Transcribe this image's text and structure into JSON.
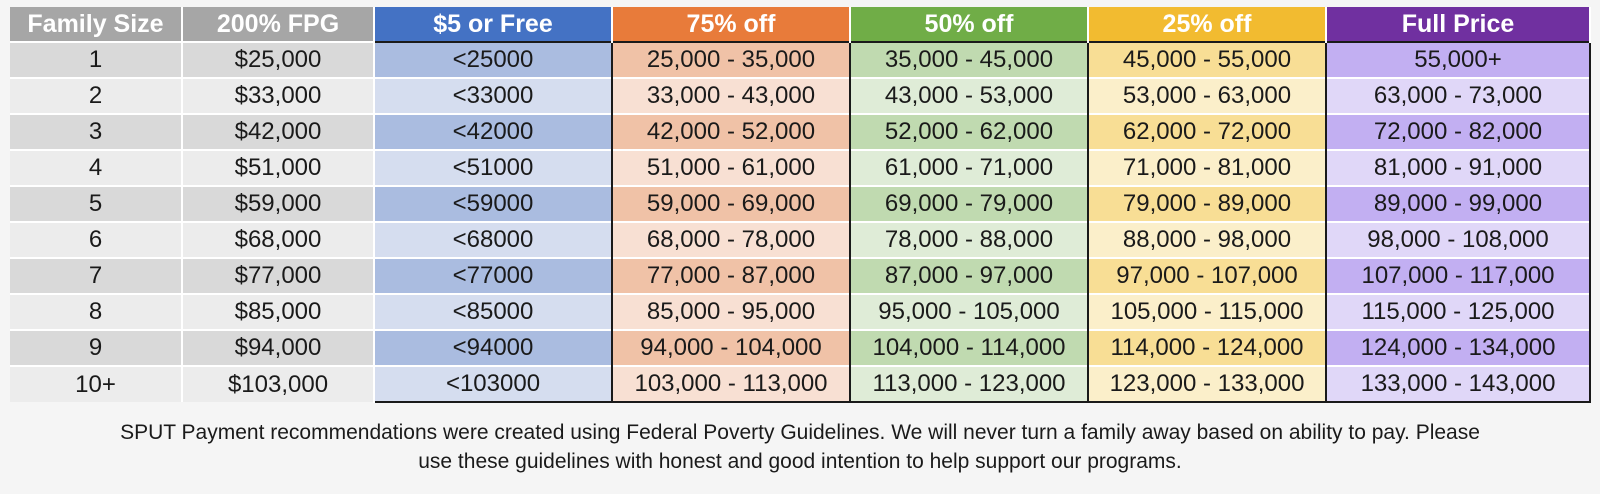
{
  "table": {
    "headers": [
      "Family Size",
      "200% FPG",
      "$5 or Free",
      "75% off",
      "50% off",
      "25% off",
      "Full Price"
    ],
    "rows": [
      [
        "1",
        "$25,000",
        "<25000",
        "25,000 - 35,000",
        "35,000 - 45,000",
        "45,000 - 55,000",
        "55,000+"
      ],
      [
        "2",
        "$33,000",
        "<33000",
        "33,000 - 43,000",
        "43,000 - 53,000",
        "53,000 - 63,000",
        "63,000 - 73,000"
      ],
      [
        "3",
        "$42,000",
        "<42000",
        "42,000 - 52,000",
        "52,000 - 62,000",
        "62,000 - 72,000",
        "72,000 - 82,000"
      ],
      [
        "4",
        "$51,000",
        "<51000",
        "51,000 - 61,000",
        "61,000 - 71,000",
        "71,000 - 81,000",
        "81,000 - 91,000"
      ],
      [
        "5",
        "$59,000",
        "<59000",
        "59,000 - 69,000",
        "69,000 - 79,000",
        "79,000 - 89,000",
        "89,000 - 99,000"
      ],
      [
        "6",
        "$68,000",
        "<68000",
        "68,000 - 78,000",
        "78,000 - 88,000",
        "88,000 - 98,000",
        "98,000 - 108,000"
      ],
      [
        "7",
        "$77,000",
        "<77000",
        "77,000 - 87,000",
        "87,000 - 97,000",
        "97,000 - 107,000",
        "107,000 - 117,000"
      ],
      [
        "8",
        "$85,000",
        "<85000",
        "85,000 - 95,000",
        "95,000 - 105,000",
        "105,000 - 115,000",
        "115,000 - 125,000"
      ],
      [
        "9",
        "$94,000",
        "<94000",
        "94,000 - 104,000",
        "104,000 - 114,000",
        "114,000 - 124,000",
        "124,000 - 134,000"
      ],
      [
        "10+",
        "$103,000",
        "<103000",
        "103,000 - 113,000",
        "113,000 - 123,000",
        "123,000 - 133,000",
        "133,000 - 143,000"
      ]
    ],
    "header_colors": {
      "family_size": "#a6a6a6",
      "fpg": "#a6a6a6",
      "free": "#4472c4",
      "off75": "#e87b3a",
      "off50": "#70ad47",
      "off25": "#f2bb30",
      "full": "#7030a0"
    }
  },
  "note": {
    "line1": "SPUT Payment recommendations were created using Federal Poverty Guidelines. We will never turn a family away based on ability to pay.  Please",
    "line2": "use these guidelines with honest and good intention to help support our programs."
  }
}
